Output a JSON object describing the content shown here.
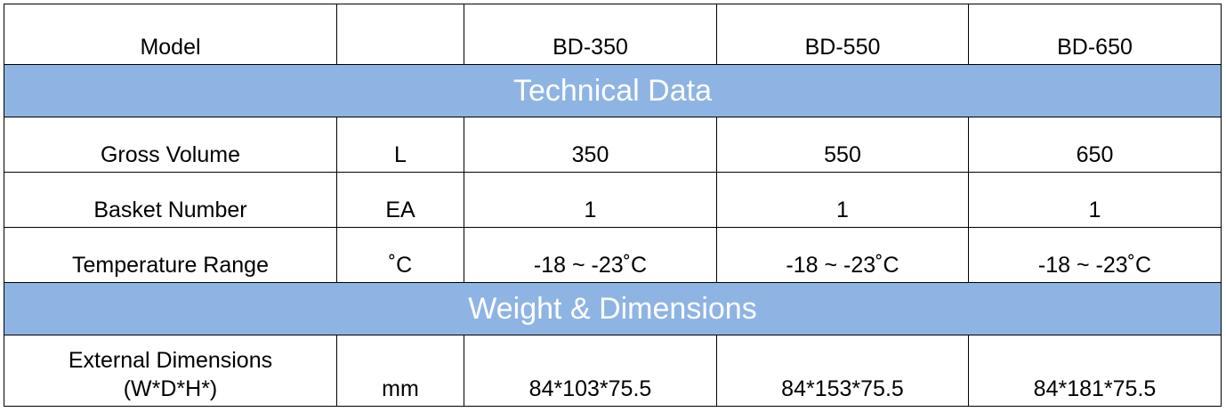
{
  "header": {
    "label": "Model",
    "models": [
      "BD-350",
      "BD-550",
      "BD-650"
    ]
  },
  "sections": [
    {
      "title": "Technical Data",
      "rows": [
        {
          "label": [
            "Gross Volume"
          ],
          "unit": "L",
          "values": [
            "350",
            "550",
            "650"
          ]
        },
        {
          "label": [
            "Basket Number"
          ],
          "unit": "EA",
          "values": [
            "1",
            "1",
            "1"
          ]
        },
        {
          "label": [
            "Temperature Range"
          ],
          "unit": "˚C",
          "values": [
            "-18 ~ -23˚C",
            "-18 ~ -23˚C",
            "-18 ~ -23˚C"
          ]
        }
      ]
    },
    {
      "title": "Weight & Dimensions",
      "rows": [
        {
          "label": [
            "External Dimensions",
            "(W*D*H*)"
          ],
          "unit": "mm",
          "values": [
            "84*103*75.5",
            "84*153*75.5",
            "84*181*75.5"
          ]
        }
      ]
    }
  ]
}
